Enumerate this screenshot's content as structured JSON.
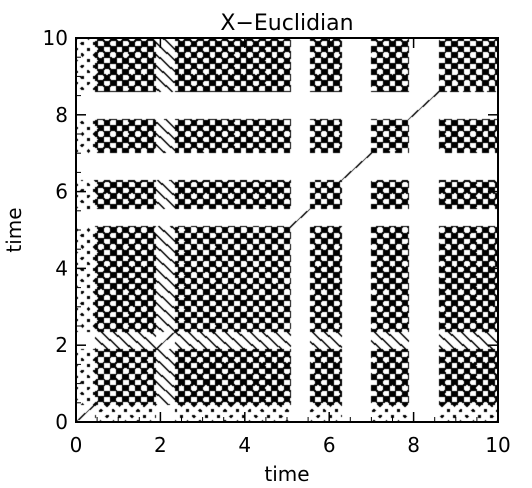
{
  "chart_data": {
    "type": "heatmap",
    "title": "X−Euclidian",
    "xlabel": "time",
    "ylabel": "time",
    "xlim": [
      0,
      10
    ],
    "ylim": [
      0,
      10
    ],
    "x_ticks": [
      "0",
      "2",
      "4",
      "6",
      "8",
      "10"
    ],
    "y_ticks": [
      "0",
      "2",
      "4",
      "6",
      "8",
      "10"
    ],
    "colors": {
      "recurrent": "#000000",
      "non_recurrent": "#ffffff"
    },
    "grid": false,
    "symmetric": true,
    "blocks": [
      {
        "range": [
          0.0,
          0.45
        ],
        "state": "low-oscillation"
      },
      {
        "range": [
          0.45,
          1.9
        ],
        "state": "oscillation"
      },
      {
        "range": [
          1.9,
          2.35
        ],
        "state": "quiet"
      },
      {
        "range": [
          2.35,
          5.1
        ],
        "state": "oscillation"
      },
      {
        "range": [
          5.1,
          5.55
        ],
        "state": "transition"
      },
      {
        "range": [
          5.55,
          6.3
        ],
        "state": "oscillation"
      },
      {
        "range": [
          6.3,
          7.0
        ],
        "state": "transition"
      },
      {
        "range": [
          7.0,
          7.9
        ],
        "state": "oscillation"
      },
      {
        "range": [
          7.9,
          8.6
        ],
        "state": "transition"
      },
      {
        "range": [
          8.6,
          10.0
        ],
        "state": "oscillation"
      }
    ]
  }
}
